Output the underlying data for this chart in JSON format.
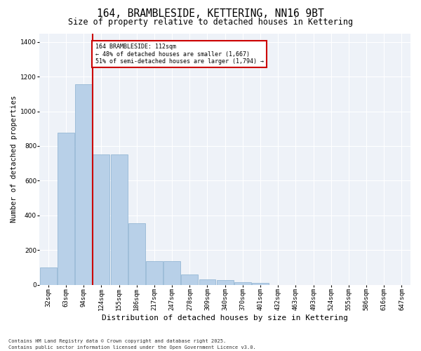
{
  "title1": "164, BRAMBLESIDE, KETTERING, NN16 9BT",
  "title2": "Size of property relative to detached houses in Kettering",
  "xlabel": "Distribution of detached houses by size in Kettering",
  "ylabel": "Number of detached properties",
  "categories": [
    "32sqm",
    "63sqm",
    "94sqm",
    "124sqm",
    "155sqm",
    "186sqm",
    "217sqm",
    "247sqm",
    "278sqm",
    "309sqm",
    "340sqm",
    "370sqm",
    "401sqm",
    "432sqm",
    "463sqm",
    "493sqm",
    "524sqm",
    "555sqm",
    "586sqm",
    "616sqm",
    "647sqm"
  ],
  "values": [
    100,
    875,
    1155,
    750,
    750,
    355,
    135,
    135,
    60,
    30,
    25,
    15,
    10,
    0,
    0,
    0,
    0,
    0,
    0,
    0,
    0
  ],
  "bar_color": "#b8d0e8",
  "bar_edge_color": "#8ab0d0",
  "vline_color": "#cc0000",
  "vline_x_index": 2,
  "annotation_text": "164 BRAMBLESIDE: 112sqm\n← 48% of detached houses are smaller (1,667)\n51% of semi-detached houses are larger (1,794) →",
  "annotation_box_color": "#cc0000",
  "ylim": [
    0,
    1450
  ],
  "yticks": [
    0,
    200,
    400,
    600,
    800,
    1000,
    1200,
    1400
  ],
  "footer1": "Contains HM Land Registry data © Crown copyright and database right 2025.",
  "footer2": "Contains public sector information licensed under the Open Government Licence v3.0.",
  "bg_color": "#eef2f8",
  "title_fontsize": 10.5,
  "subtitle_fontsize": 8.5,
  "axis_label_fontsize": 7.5,
  "tick_fontsize": 6.5,
  "footer_fontsize": 5.0
}
